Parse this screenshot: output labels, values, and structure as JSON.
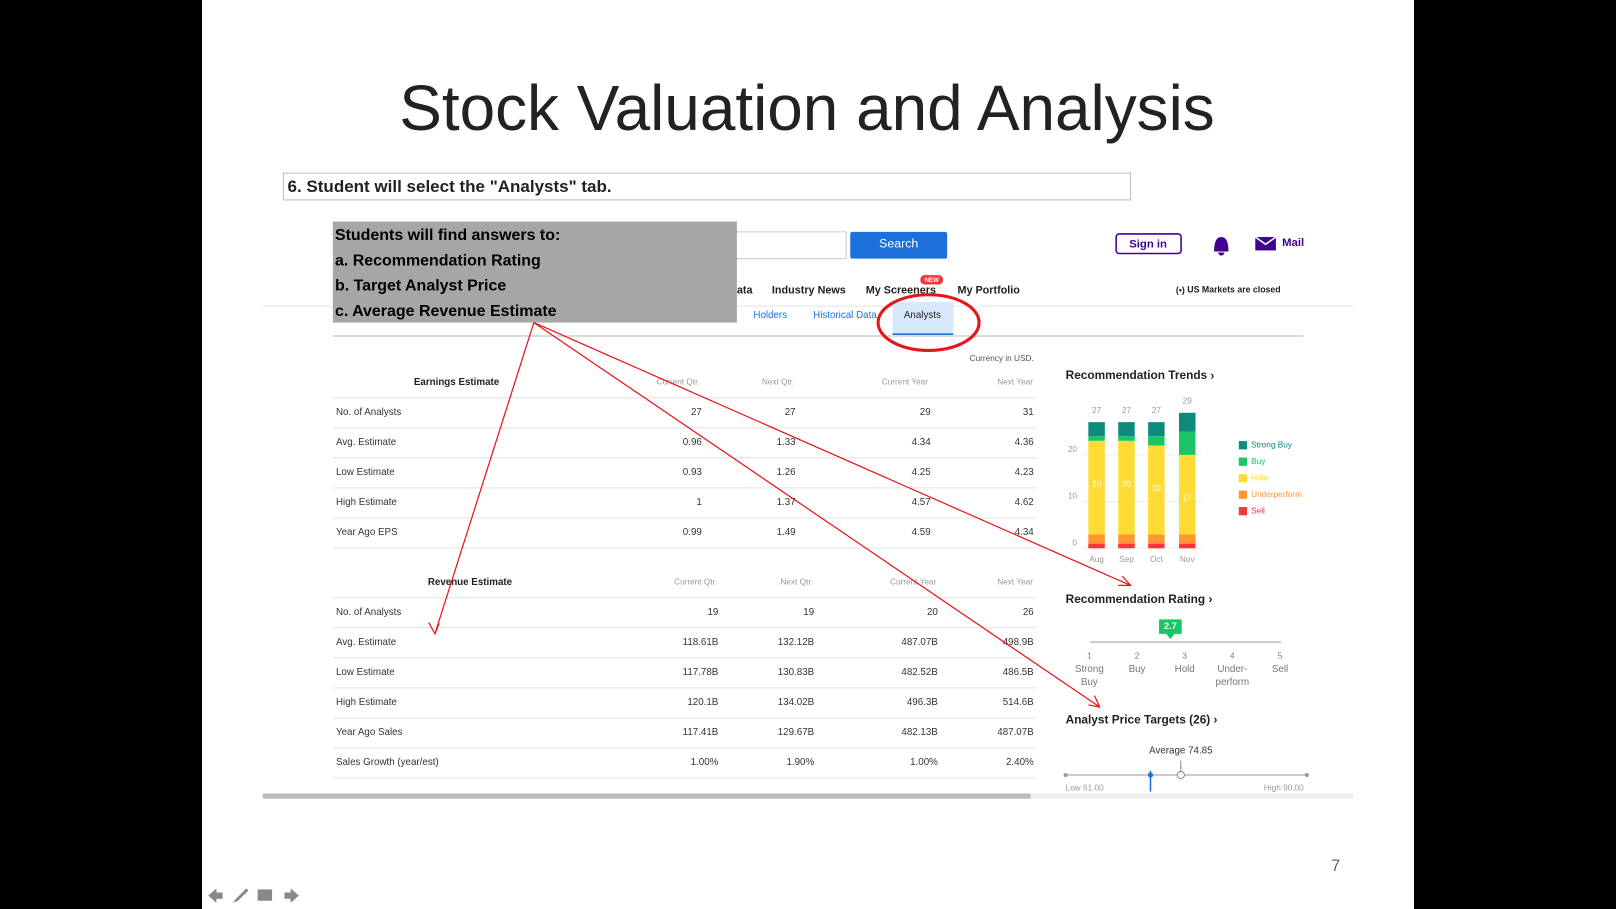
{
  "slide": {
    "title": "Stock Valuation and Analysis",
    "instruction": "6. Student will select the \"Analysts\" tab.",
    "callout": [
      "Students will find answers to:",
      "a. Recommendation Rating",
      "b. Target Analyst Price",
      "c. Average Revenue Estimate"
    ],
    "page_number": "7"
  },
  "header": {
    "search_button": "Search",
    "sign_in": "Sign in",
    "mail": "Mail",
    "nav": [
      "ata",
      "Industry News",
      "My Screeners",
      "My Portfolio"
    ],
    "new_badge": "NEW",
    "market_status": "US Markets are closed",
    "subtabs": [
      "Holders",
      "Historical Data",
      "Analysts"
    ]
  },
  "currency": "Currency in USD.",
  "earnings": {
    "title": "Earnings Estimate",
    "columns": [
      "Current Qtr.",
      "Next Qtr.",
      "Current Year",
      "Next Year"
    ],
    "rows": [
      [
        "No. of Analysts",
        "27",
        "27",
        "29",
        "31"
      ],
      [
        "Avg. Estimate",
        "0.96",
        "1.33",
        "4.34",
        "4.36"
      ],
      [
        "Low Estimate",
        "0.93",
        "1.26",
        "4.25",
        "4.23"
      ],
      [
        "High Estimate",
        "1",
        "1.37",
        "4.57",
        "4.62"
      ],
      [
        "Year Ago EPS",
        "0.99",
        "1.49",
        "4.59",
        "4.34"
      ]
    ]
  },
  "revenue": {
    "title": "Revenue Estimate",
    "columns": [
      "Current Qtr.",
      "Next Qtr.",
      "Current Year",
      "Next Year"
    ],
    "rows": [
      [
        "No. of Analysts",
        "19",
        "19",
        "20",
        "26"
      ],
      [
        "Avg. Estimate",
        "118.61B",
        "132.12B",
        "487.07B",
        "498.9B"
      ],
      [
        "Low Estimate",
        "117.78B",
        "130.83B",
        "482.52B",
        "486.5B"
      ],
      [
        "High Estimate",
        "120.1B",
        "134.02B",
        "496.3B",
        "514.6B"
      ],
      [
        "Year Ago Sales",
        "117.41B",
        "129.67B",
        "482.13B",
        "487.07B"
      ],
      [
        "Sales Growth (year/est)",
        "1.00%",
        "1.90%",
        "1.00%",
        "2.40%"
      ]
    ]
  },
  "trends": {
    "type": "bar",
    "title": "Recommendation Trends",
    "categories": [
      "Aug",
      "Sep",
      "Oct",
      "Nov"
    ],
    "series": [
      {
        "name": "Sell",
        "color": "#ff333a",
        "values": [
          1,
          1,
          1,
          1
        ]
      },
      {
        "name": "Underperform",
        "color": "#ff9632",
        "values": [
          2,
          2,
          2,
          2
        ]
      },
      {
        "name": "Hold",
        "color": "#ffdc33",
        "values": [
          20,
          20,
          19,
          17
        ]
      },
      {
        "name": "Buy",
        "color": "#1ac567",
        "values": [
          1,
          1,
          2,
          5
        ]
      },
      {
        "name": "Strong Buy",
        "color": "#0e8a7d",
        "values": [
          3,
          3,
          3,
          4
        ]
      }
    ],
    "totals": [
      27,
      27,
      27,
      29
    ],
    "ylim": [
      0,
      30
    ],
    "yticks": [
      0,
      10,
      20
    ]
  },
  "rating": {
    "title": "Recommendation Rating",
    "value": 2.7,
    "scale": [
      [
        "1",
        "Strong",
        "Buy"
      ],
      [
        "2",
        "Buy"
      ],
      [
        "3",
        "Hold"
      ],
      [
        "4",
        "Under-",
        "perform"
      ],
      [
        "5",
        "Sell"
      ]
    ]
  },
  "price_targets": {
    "title": "Analyst Price Targets (26)",
    "average_label": "Average",
    "average": 74.85,
    "low_label": "Low",
    "low": {
      "value": 61,
      "label": "61.00"
    },
    "high_label": "High",
    "high": {
      "value": 90,
      "label": "90.00"
    },
    "current": 71.2
  }
}
